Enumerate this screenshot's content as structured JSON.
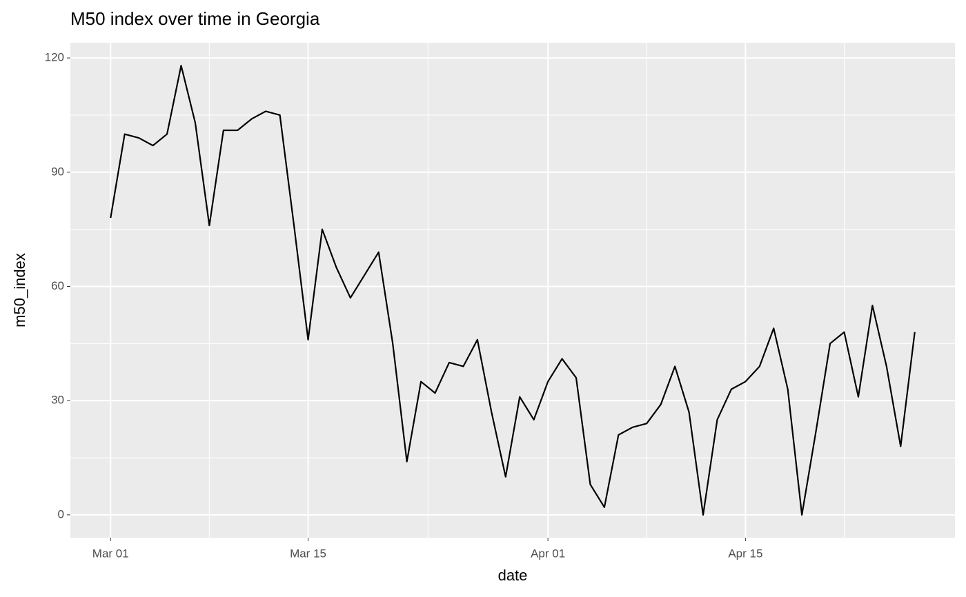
{
  "chart_data": {
    "type": "line",
    "title": "M50 index over time in Georgia",
    "x_label": "date",
    "y_label": "m50_index",
    "x": [
      "Mar 01",
      "Mar 02",
      "Mar 03",
      "Mar 04",
      "Mar 05",
      "Mar 06",
      "Mar 07",
      "Mar 08",
      "Mar 09",
      "Mar 10",
      "Mar 11",
      "Mar 12",
      "Mar 13",
      "Mar 14",
      "Mar 15",
      "Mar 16",
      "Mar 17",
      "Mar 18",
      "Mar 19",
      "Mar 20",
      "Mar 21",
      "Mar 22",
      "Mar 23",
      "Mar 24",
      "Mar 25",
      "Mar 26",
      "Mar 27",
      "Mar 28",
      "Mar 29",
      "Mar 30",
      "Mar 31",
      "Apr 01",
      "Apr 02",
      "Apr 03",
      "Apr 04",
      "Apr 05",
      "Apr 06",
      "Apr 07",
      "Apr 08",
      "Apr 09",
      "Apr 10",
      "Apr 11",
      "Apr 12",
      "Apr 13",
      "Apr 14",
      "Apr 15",
      "Apr 16",
      "Apr 17",
      "Apr 18",
      "Apr 19",
      "Apr 20",
      "Apr 21",
      "Apr 22",
      "Apr 23",
      "Apr 24",
      "Apr 25",
      "Apr 26",
      "Apr 27"
    ],
    "values": [
      78,
      100,
      99,
      97,
      100,
      118,
      103,
      76,
      101,
      101,
      104,
      106,
      105,
      76,
      46,
      75,
      65,
      57,
      63,
      69,
      45,
      14,
      35,
      32,
      40,
      39,
      46,
      27,
      10,
      31,
      25,
      35,
      41,
      36,
      8,
      2,
      21,
      23,
      24,
      29,
      39,
      27,
      0,
      25,
      33,
      35,
      39,
      49,
      33,
      0,
      22,
      45,
      48,
      31,
      55,
      39,
      18,
      48
    ],
    "color": "#000000",
    "xticks": [
      "Mar 01",
      "Mar 15",
      "Apr 01",
      "Apr 15"
    ],
    "ylim": [
      -6,
      124
    ],
    "yticks": [
      0,
      30,
      60,
      90,
      120
    ],
    "grid": true
  }
}
